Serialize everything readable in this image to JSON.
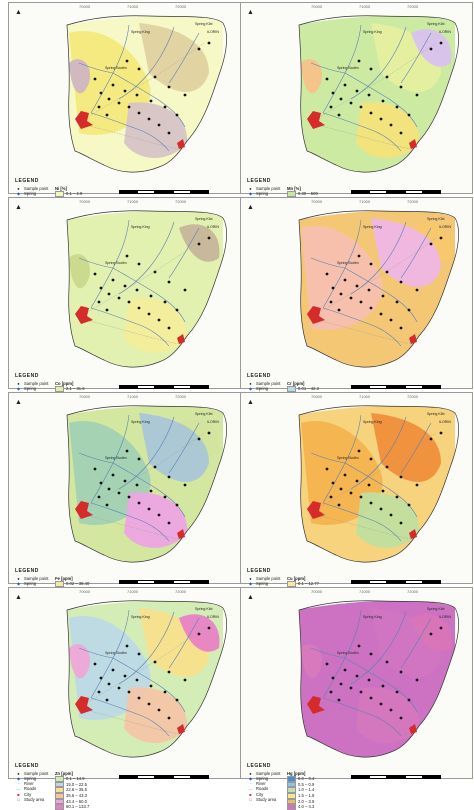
{
  "north_symbol": "▲",
  "ticks": {
    "top": [
      "70000",
      "71000",
      "72000"
    ],
    "side": [
      "8500",
      "8100",
      "7700"
    ]
  },
  "places": {
    "spring_king": "Spring King",
    "spring_bodim": "Spring Bodim",
    "spring_kibi": "Spring Kibi",
    "ilorin": "ILORIN"
  },
  "common_legend": {
    "sample_point": "Sample point",
    "spring": "Spring",
    "river": "River",
    "roads": "Roads",
    "city": "City",
    "study_area": "Study area"
  },
  "panels": [
    {
      "legend_title": "LEGEND",
      "element_label": "Ni [%]",
      "classes": [
        {
          "label": "0.1 – 2.9",
          "color": "#f5f7c0"
        },
        {
          "label": "3.0 – 3.7",
          "color": "#f4e87a"
        },
        {
          "label": "3.8 – 4.6",
          "color": "#e0cfa0"
        },
        {
          "label": "4.7 – 5.3",
          "color": "#d6c2c8"
        },
        {
          "label": "5.4 – 7.2",
          "color": "#cdb4c4"
        }
      ]
    },
    {
      "legend_title": "LEGEND",
      "element_label": "Mn [%]",
      "classes": [
        {
          "label": "0.30 – 500",
          "color": "#c8e89a"
        },
        {
          "label": "501 – 1,000",
          "color": "#e6f0a0"
        },
        {
          "label": "1,001 – 1,500",
          "color": "#f6e27a"
        },
        {
          "label": "1,501 – 2,000",
          "color": "#f7c088"
        },
        {
          "label": "2,001 – 2,600",
          "color": "#d9c0f0"
        }
      ]
    },
    {
      "legend_title": "LEGEND",
      "element_label": "Co [ppm]",
      "classes": [
        {
          "label": "2.1 – 31.6",
          "color": "#dff0a8"
        },
        {
          "label": "31.7 – 50.21",
          "color": "#f3ee9a"
        },
        {
          "label": "50.22 – 80.18",
          "color": "#c9d88c"
        },
        {
          "label": "80.19 – 105",
          "color": "#c6b39a"
        }
      ]
    },
    {
      "legend_title": "LEGEND",
      "element_label": "Cr [ppm]",
      "classes": [
        {
          "label": "0.01 – 42.3",
          "color": "#bcd9e6"
        },
        {
          "label": "42.4 – 61",
          "color": "#c8e4a6"
        },
        {
          "label": "61.1 – 68.5",
          "color": "#f1e88a"
        },
        {
          "label": "68.6 – 87.1",
          "color": "#f8c46a"
        },
        {
          "label": "87.2 – 144.3",
          "color": "#f5bfb2"
        },
        {
          "label": "144.4 – 160",
          "color": "#efb6e8"
        }
      ]
    },
    {
      "legend_title": "LEGEND",
      "element_label": "Fe [ppm]",
      "classes": [
        {
          "label": "0.02 – 38.40",
          "color": "#f5e7a8"
        },
        {
          "label": "38.41 – 50.75",
          "color": "#f3c774"
        },
        {
          "label": "50.76 – 71.07",
          "color": "#cfe6a0"
        },
        {
          "label": "71.08 – 95.97",
          "color": "#9fd0b4"
        },
        {
          "label": "95.98 – 123.3",
          "color": "#a8c6d8"
        },
        {
          "label": "123.4 – 144.8",
          "color": "#eea4e4"
        }
      ]
    },
    {
      "legend_title": "LEGEND",
      "element_label": "Cu [ppm]",
      "classes": [
        {
          "label": "0.1 – 12.77",
          "color": "#f7e9a3"
        },
        {
          "label": "12.78 – 16.09",
          "color": "#f6d07a"
        },
        {
          "label": "16.10 – 19.80",
          "color": "#f4b24c"
        },
        {
          "label": "19.81 – 22.30",
          "color": "#f08c38"
        },
        {
          "label": "22.31 – 25.9",
          "color": "#bfe0a0"
        }
      ]
    },
    {
      "legend_title": "LEGEND",
      "element_label": "Zn [ppm]",
      "classes": [
        {
          "label": "0.1 – 14.9",
          "color": "#d0ecb0"
        },
        {
          "label": "15.0 – 22.5",
          "color": "#bcd9e8"
        },
        {
          "label": "22.6 – 35.5",
          "color": "#f8e08c"
        },
        {
          "label": "35.6 – 43.3",
          "color": "#f4c4a8"
        },
        {
          "label": "43.4 – 60.0",
          "color": "#f0a6d8"
        },
        {
          "label": "60.1 – 133.7",
          "color": "#e87fc8"
        }
      ]
    },
    {
      "legend_title": "LEGEND",
      "element_label": "Hg [ppm]",
      "classes": [
        {
          "label": "0.0 – 0.4",
          "color": "#4a90d0"
        },
        {
          "label": "0.5 – 0.9",
          "color": "#8fc4e6"
        },
        {
          "label": "1.0 – 1.4",
          "color": "#bfe0b0"
        },
        {
          "label": "1.5 – 1.9",
          "color": "#f2e98e"
        },
        {
          "label": "2.0 – 3.9",
          "color": "#f4b862"
        },
        {
          "label": "4.0 – 4.3",
          "color": "#d76fc0"
        }
      ]
    }
  ]
}
